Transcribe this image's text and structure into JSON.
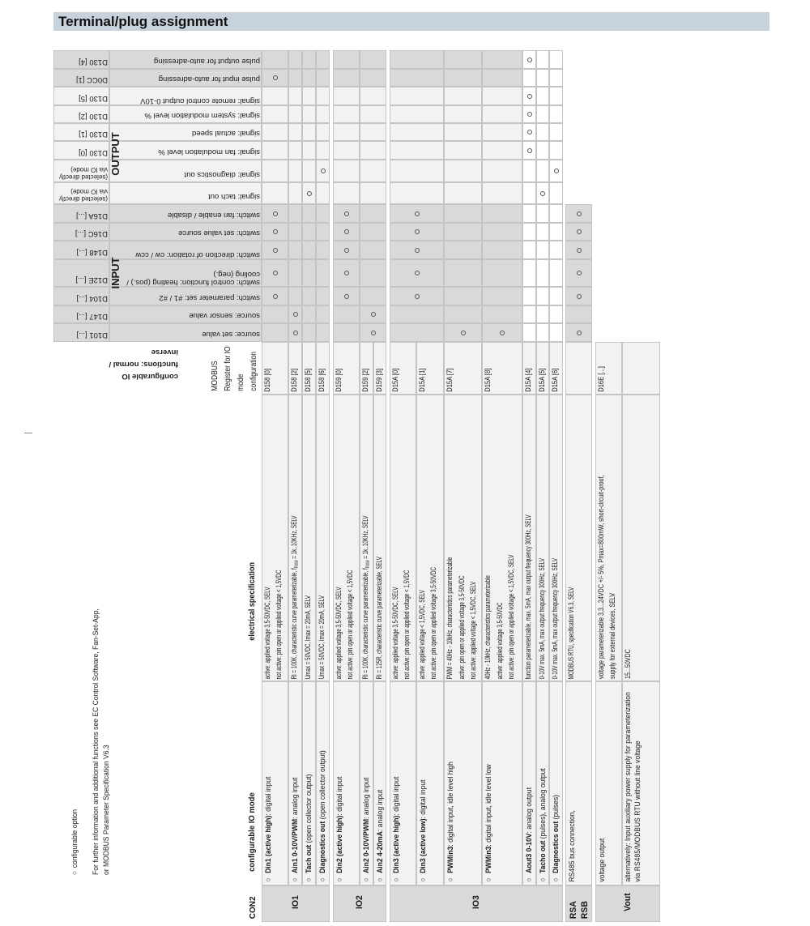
{
  "title": "Terminal/plug assignment",
  "legend": {
    "symbol": "○",
    "configurable_option": "configurable  option",
    "note_lines": [
      "For further information and additional functions see EC Control Software, Fan-Set-App,",
      "or MODBUS Parameter Specification V6.3"
    ]
  },
  "header": {
    "io_functions_label": [
      "configurable IO",
      "functions: normal /",
      "inverse"
    ],
    "modbus_label": [
      "MODBUS",
      "Register for IO",
      "mode",
      "configuration"
    ],
    "group_output": "OUTPUT",
    "group_input": "INPUT"
  },
  "signals": [
    {
      "register": [
        "D130 [4]"
      ],
      "label": "pulse output for auto-adressing",
      "marks": [
        0,
        0,
        0,
        0,
        0,
        0,
        0,
        0,
        0,
        1,
        0,
        0,
        0
      ]
    },
    {
      "register": [
        "D0CC [1]"
      ],
      "label": "pulse input for auto-adressing",
      "marks": [
        1,
        0,
        0,
        0,
        0,
        0,
        0,
        0,
        0,
        0,
        0,
        0,
        0
      ]
    },
    {
      "register": [
        "D130 [5]"
      ],
      "label": "signal: remote control output 0-10V",
      "marks": [
        0,
        0,
        0,
        0,
        0,
        0,
        0,
        0,
        0,
        1,
        0,
        0,
        0
      ]
    },
    {
      "register": [
        "D130 [2]"
      ],
      "label": "signal: system modulation level %",
      "marks": [
        0,
        0,
        0,
        0,
        0,
        0,
        0,
        0,
        0,
        1,
        0,
        0,
        0
      ]
    },
    {
      "register": [
        "D130 [1]"
      ],
      "label": "signal: actual speed",
      "marks": [
        0,
        0,
        0,
        0,
        0,
        0,
        0,
        0,
        0,
        1,
        0,
        0,
        0
      ]
    },
    {
      "register": [
        "D130 [0]"
      ],
      "label": "signal: fan modulation level %",
      "marks": [
        0,
        0,
        0,
        0,
        0,
        0,
        0,
        0,
        0,
        1,
        0,
        0,
        0
      ]
    },
    {
      "register": [
        "(selected directly",
        "via IO mode)"
      ],
      "label": "signal: diagnostics out",
      "marks": [
        0,
        0,
        0,
        1,
        0,
        0,
        0,
        0,
        0,
        0,
        0,
        1,
        0
      ]
    },
    {
      "register": [
        "(selected directly",
        "via IO mode)"
      ],
      "label": "signal: tach out",
      "marks": [
        0,
        0,
        1,
        0,
        0,
        0,
        0,
        0,
        0,
        0,
        1,
        0,
        0
      ]
    },
    {
      "register": [
        "D16A [...]"
      ],
      "label": "switch: fan enable / disable",
      "marks": [
        1,
        0,
        0,
        0,
        1,
        0,
        1,
        0,
        0,
        0,
        0,
        0,
        1
      ]
    },
    {
      "register": [
        "D16C [...]"
      ],
      "label": "switch: set value source",
      "marks": [
        1,
        0,
        0,
        0,
        1,
        0,
        1,
        0,
        0,
        0,
        0,
        0,
        1
      ]
    },
    {
      "register": [
        "D148 [...]"
      ],
      "label": "switch: direction of rotation: cw / ccw",
      "marks": [
        1,
        0,
        0,
        0,
        1,
        0,
        1,
        0,
        0,
        0,
        0,
        0,
        1
      ]
    },
    {
      "register": [
        "D12E [...]"
      ],
      "label": "switch: control function: heating (pos.) / cooling (neg.)",
      "marks": [
        1,
        0,
        0,
        0,
        1,
        0,
        1,
        0,
        0,
        0,
        0,
        0,
        1
      ]
    },
    {
      "register": [
        "D104 [...]"
      ],
      "label": "switch: parameter set: #1 / #2",
      "marks": [
        1,
        0,
        0,
        0,
        1,
        0,
        1,
        0,
        0,
        0,
        0,
        0,
        1
      ]
    },
    {
      "register": [
        "D147 [...]"
      ],
      "label": "source: sensor value",
      "marks": [
        0,
        1,
        0,
        0,
        0,
        1,
        0,
        0,
        0,
        0,
        0,
        0,
        0
      ]
    },
    {
      "register": [
        "D101 [...]"
      ],
      "label": "source: set value",
      "marks": [
        0,
        1,
        0,
        0,
        0,
        1,
        0,
        1,
        1,
        0,
        0,
        0,
        1
      ]
    }
  ],
  "table": {
    "con2": "CON2",
    "mode_header": "configurable IO mode",
    "spec_header": "electrical specification",
    "groups": [
      {
        "label": [
          "IO1"
        ],
        "rows": [
          {
            "bullet": "○",
            "bold": "Din1 (active high)",
            "rest": ": digital input",
            "spec": [
              {
                "t": "active: applied voltage 3,5-50VDC, SELV"
              },
              {
                "t": "not active: pin open or applied voltage < 1,5VDC"
              }
            ],
            "register": "D158 [0]"
          },
          {
            "bullet": "○",
            "bold": "Ain1 0-10V/PWM",
            "rest": ": analog input",
            "spec": [
              {
                "t": "Ri = 100K, characteristic curve parameterizable, f",
                "sub": "PWM",
                "t2": " = 1k..10KHz, SELV"
              }
            ],
            "register": "D158 [2]"
          },
          {
            "bullet": "○",
            "bold": "Tach out",
            "rest": " (open collector output)",
            "spec": [
              {
                "t": "Umax = 50VDC, Imax = 20mA, SELV"
              }
            ],
            "register": "D158 [5]"
          },
          {
            "bullet": "○",
            "bold": "Diagnostics out",
            "rest": " (open collector output)",
            "spec": [
              {
                "t": "Umax = 50VDC, Imax = 20mA, SELV"
              }
            ],
            "register": "D158 [6]"
          }
        ]
      },
      {
        "label": [
          "IO2"
        ],
        "rows": [
          {
            "bullet": "○",
            "bold": "Din2 (active high)",
            "rest": ": digital input",
            "spec": [
              {
                "t": "active: applied voltage 3,5-50VDC, SELV"
              },
              {
                "t": "not active: pin open or applied voltage < 1,5VDC"
              }
            ],
            "register": "D159 [0]"
          },
          {
            "bullet": "○",
            "bold": "Ain2 0-10V/PWM",
            "rest": ": analog input",
            "spec": [
              {
                "t": "Ri = 100K, characteristic curve parameterizable, f",
                "sub": "PWM",
                "t2": " = 1k..10KHz, SELV"
              }
            ],
            "register": "D159 [2]"
          },
          {
            "bullet": "○",
            "bold": "Ain2 4-20mA",
            "rest": ": analog input",
            "spec": [
              {
                "t": "Ri = 125R, characteristic curve parameterizable, SELV"
              }
            ],
            "register": "D159 [3]"
          }
        ]
      },
      {
        "label": [
          "IO3"
        ],
        "rows": [
          {
            "bullet": "○",
            "bold": "Din3 (active high)",
            "rest": ": digital input",
            "spec": [
              {
                "t": "active: applied voltage 3,5-50VDC, SELV"
              },
              {
                "t": "not active: pin open or applied voltage < 1,5VDC"
              }
            ],
            "register": "D15A [0]"
          },
          {
            "bullet": "○",
            "bold": "Din3 (active low)",
            "rest": ": digital input",
            "spec": [
              {
                "t": "active: applied voltage < 1,5VDC, SELV"
              },
              {
                "t": "not active: pin open or applied voltage 3,5-50VDC"
              }
            ],
            "register": "D15A [1]"
          },
          {
            "bullet": "○",
            "bold": "PWMin3",
            "rest": ": digital input, idle level high",
            "spec": [
              {
                "t": "PWM = 40Hz - 10kHz, characteristics parameterizable"
              },
              {
                "t": "active: pin open or applied voltage 3,5-50VDC"
              },
              {
                "t": "not active: applied voltage < 1,5VDC, SELV"
              }
            ],
            "register": "D15A [7]"
          },
          {
            "bullet": "○",
            "bold": "PWMin3",
            "rest": ": digital input, idle level low",
            "spec": [
              {
                "t": "40Hz - 10kHz, characteristics parameterizable"
              },
              {
                "t": "active: applied voltage 3,5-50VDC"
              },
              {
                "t": "not active: pin open or applied voltage < 1,5VDC, SELV"
              }
            ],
            "register": "D15A [8]"
          },
          {
            "bullet": "○",
            "bold": "Aout3 0-10V",
            "rest": ": analog output",
            "spec": [
              {
                "t": "function parameterizable, max. 5mA, max output frequency 300Hz, SELV"
              }
            ],
            "register": "D15A [4]"
          },
          {
            "bullet": "○",
            "bold": "Tacho out",
            "rest": " (pulses), analog output",
            "spec": [
              {
                "t": "0-10V max. 5mA, max output frequency 300Hz, SELV"
              }
            ],
            "register": "D15A [5]"
          },
          {
            "bullet": "○",
            "bold": "Diagnostics out",
            "rest": " (pulses)",
            "spec": [
              {
                "t": "0-10V max. 5mA, max output frequency 300Hz, SELV"
              }
            ],
            "register": "D15A [6]"
          }
        ]
      },
      {
        "label": [
          "RSA",
          "RSB"
        ],
        "rows": [
          {
            "bullet": "",
            "bold": "",
            "rest": "RS485 bus connection,",
            "spec": [
              {
                "t": "MODBUS RTU, specification V6.3, SELV"
              }
            ],
            "register": ""
          }
        ]
      },
      {
        "label": [
          "Vout"
        ],
        "rows": [
          {
            "bullet": "",
            "bold": "",
            "rest": "voltage output",
            "spec": [
              {
                "t": "voltage parameterizable 3,3...24VDC +/- 5%, Pmax=800mW,  short-circuit-proof,"
              },
              {
                "t": "supply for external devices, SELV"
              }
            ],
            "register": "D16E [...]"
          },
          {
            "bullet": "",
            "bold": "",
            "rest": "alternatively:  Input auxiliary power supply for parameterization via RS485/MODBUS RTU without line voltage",
            "spec": [
              {
                "t": "15...50VDC"
              }
            ],
            "register": ""
          }
        ]
      }
    ]
  },
  "colors": {
    "title_bar": "#c8d2dc",
    "cell_gray": "#d9d9d9",
    "cell_light": "#f2f2f2",
    "border": "#c4c4c4"
  }
}
